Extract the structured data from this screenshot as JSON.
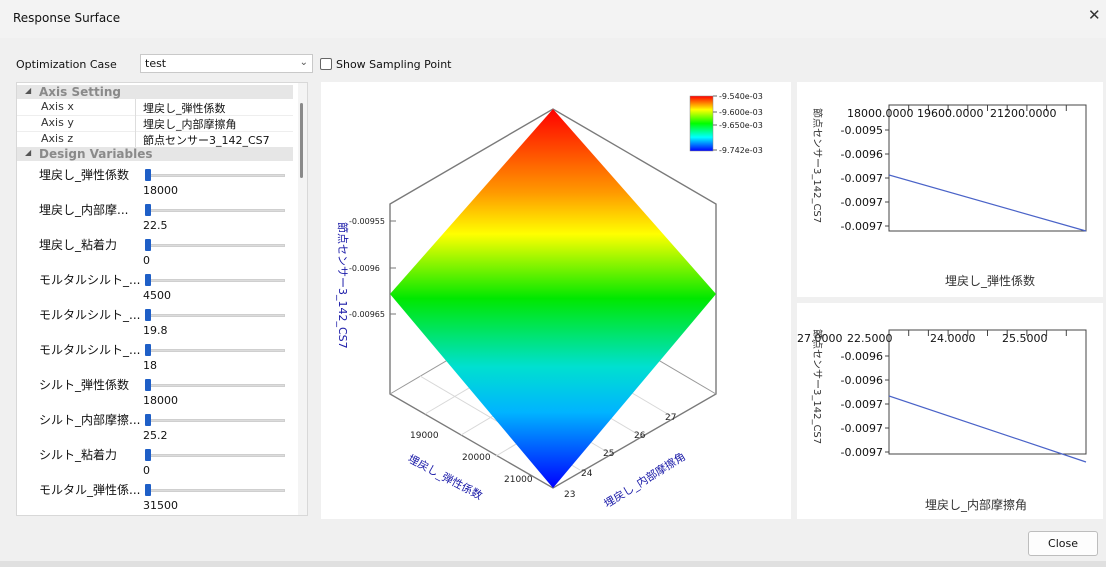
{
  "window": {
    "title": "Response Surface",
    "close_symbol": "✕"
  },
  "toolbar": {
    "optimization_case_label": "Optimization Case",
    "optimization_case_value": "test",
    "show_sampling_point_label": "Show Sampling Point",
    "show_sampling_point_checked": false
  },
  "properties": {
    "axis_setting_title": "Axis Setting",
    "axes": [
      {
        "key": "Axis x",
        "value": "埋戻し_弾性係数"
      },
      {
        "key": "Axis y",
        "value": "埋戻し_内部摩擦角"
      },
      {
        "key": "Axis z",
        "value": "節点センサー3_142_CS7"
      }
    ],
    "design_variables_title": "Design Variables",
    "variables": [
      {
        "name": "埋戻し_弾性係数",
        "value": "18000"
      },
      {
        "name": "埋戻し_内部摩...",
        "value": "22.5"
      },
      {
        "name": "埋戻し_粘着力",
        "value": "0"
      },
      {
        "name": "モルタルシルト_...",
        "value": "4500"
      },
      {
        "name": "モルタルシルト_...",
        "value": "19.8"
      },
      {
        "name": "モルタルシルト_...",
        "value": "18"
      },
      {
        "name": "シルト_弾性係数",
        "value": "18000"
      },
      {
        "name": "シルト_内部摩擦...",
        "value": "25.2"
      },
      {
        "name": "シルト_粘着力",
        "value": "0"
      },
      {
        "name": "モルタル_弾性係...",
        "value": "31500"
      }
    ]
  },
  "chart_data": [
    {
      "type": "surface",
      "x_axis_label": "埋戻し_弾性係数",
      "y_axis_label": "埋戻し_内部摩擦角",
      "z_axis_label": "節点センサー3_142_CS7",
      "x_ticks": [
        "19000",
        "20000",
        "21000"
      ],
      "y_ticks": [
        "23",
        "24",
        "25",
        "26",
        "27"
      ],
      "z_ticks": [
        "-0.00955",
        "-0.0096",
        "-0.00965"
      ],
      "colorbar_labels": [
        "-9.540e-03",
        "-9.600e-03",
        "-9.650e-03",
        "-9.742e-03"
      ],
      "colormap": [
        "#ff0000",
        "#ffff00",
        "#00ff00",
        "#00ffff",
        "#0000ff"
      ]
    },
    {
      "type": "line",
      "xlabel": "埋戻し_弾性係数",
      "ylabel": "節点センサー3_142_CS7",
      "x_ticks": [
        "18000.0000",
        "19600.0000",
        "21200.0000"
      ],
      "y_ticks": [
        "-0.0095",
        "-0.0096",
        "-0.0097",
        "-0.0097",
        "-0.0097"
      ],
      "x": [
        18000,
        22000
      ],
      "y": [
        -0.00965,
        -0.00974
      ],
      "line_color": "#4a63c8"
    },
    {
      "type": "line",
      "xlabel": "埋戻し_内部摩擦角",
      "ylabel": "節点センサー3_142_CS7",
      "x_ticks": [
        "22.5000",
        "24.0000",
        "25.5000",
        "27.0000"
      ],
      "y_ticks": [
        "-0.0096",
        "-0.0096",
        "-0.0097",
        "-0.0097",
        "-0.0097"
      ],
      "x": [
        22.5,
        27.0
      ],
      "y": [
        -0.00971,
        -0.00957
      ],
      "line_color": "#4a63c8"
    }
  ],
  "footer": {
    "close_label": "Close"
  }
}
